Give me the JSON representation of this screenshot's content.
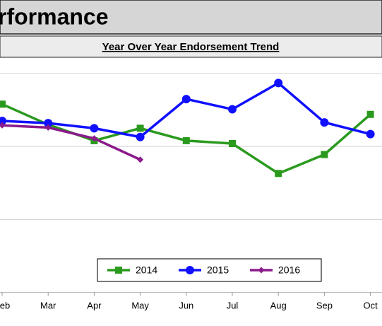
{
  "chart_data": {
    "type": "line",
    "title": "rformance",
    "subtitle": "Year Over Year Endorsement Trend",
    "categories": [
      "Feb",
      "Mar",
      "Apr",
      "May",
      "Jun",
      "Jul",
      "Aug",
      "Sep",
      "Oct"
    ],
    "series": [
      {
        "name": "2014",
        "color": "#2a9a1e",
        "marker": "square",
        "values": [
          2.58,
          2.3,
          2.08,
          2.25,
          2.08,
          2.04,
          1.63,
          1.89,
          2.44
        ]
      },
      {
        "name": "2015",
        "color": "#1010ff",
        "marker": "circle",
        "values": [
          2.35,
          2.32,
          2.25,
          2.13,
          2.65,
          2.51,
          2.87,
          2.33,
          2.17
        ]
      },
      {
        "name": "2016",
        "color": "#8b1a8b",
        "marker": "diamond",
        "values": [
          2.29,
          2.26,
          2.11,
          1.82,
          null,
          null,
          null,
          null,
          null
        ]
      }
    ],
    "ylim": [
      0,
      3.15
    ],
    "yticks": [
      1,
      2,
      3
    ],
    "grid": true,
    "legend": "bottom"
  }
}
